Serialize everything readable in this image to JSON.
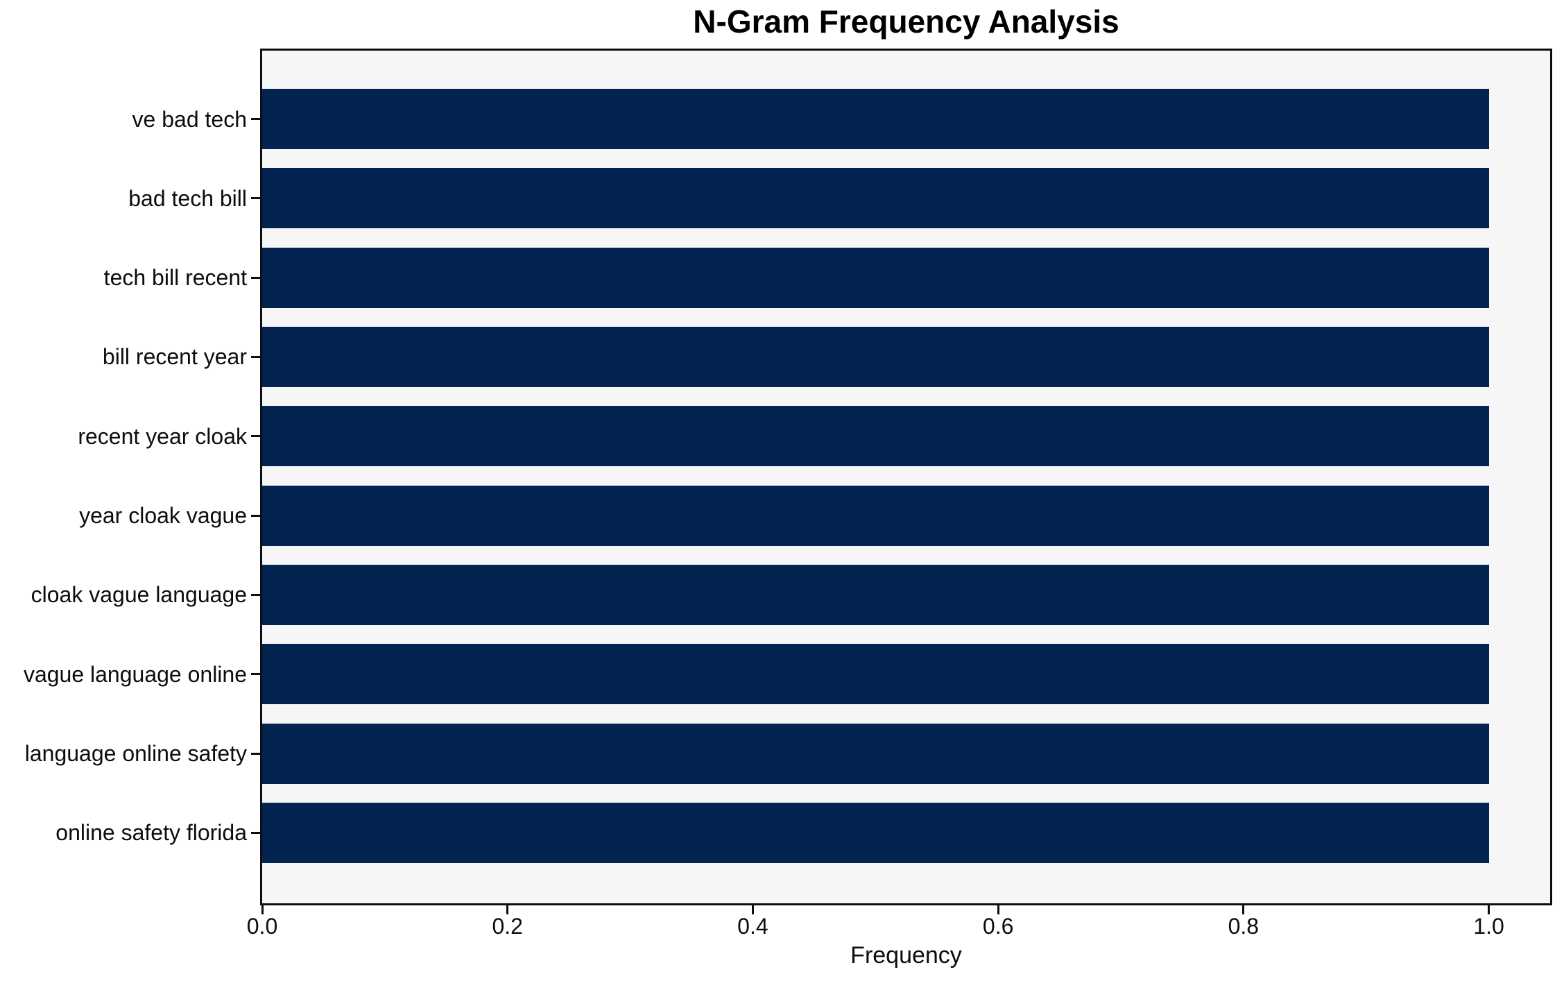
{
  "figure": {
    "background": "#ffffff"
  },
  "chart_data": {
    "type": "bar",
    "orientation": "horizontal",
    "title": "N-Gram Frequency Analysis",
    "xlabel": "Frequency",
    "ylabel": "",
    "categories": [
      "ve bad tech",
      "bad tech bill",
      "tech bill recent",
      "bill recent year",
      "recent year cloak",
      "year cloak vague",
      "cloak vague language",
      "vague language online",
      "language online safety",
      "online safety florida"
    ],
    "values": [
      1.0,
      1.0,
      1.0,
      1.0,
      1.0,
      1.0,
      1.0,
      1.0,
      1.0,
      1.0
    ],
    "xlim": [
      0,
      1.05
    ],
    "xticks": [
      0.0,
      0.2,
      0.4,
      0.6,
      0.8,
      1.0
    ],
    "xtick_labels": [
      "0.0",
      "0.2",
      "0.4",
      "0.6",
      "0.8",
      "1.0"
    ],
    "bar_color": "#032450",
    "plot_background": "#f6f6f7",
    "spine_color": "#0e0e0e",
    "grid": false,
    "legend_position": "none"
  }
}
